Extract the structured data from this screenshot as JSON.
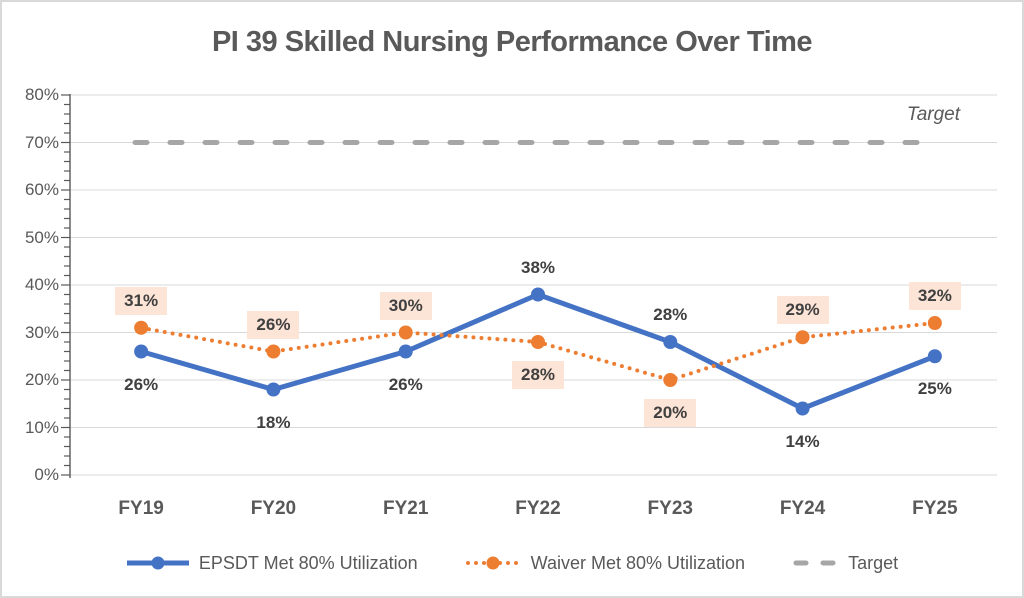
{
  "title": "PI 39 Skilled Nursing Performance Over Time",
  "chart_data": {
    "type": "line",
    "title": "PI 39 Skilled Nursing Performance Over Time",
    "categories": [
      "FY19",
      "FY20",
      "FY21",
      "FY22",
      "FY23",
      "FY24",
      "FY25"
    ],
    "series": [
      {
        "name": "EPSDT Met 80% Utilization",
        "color": "#4472C4",
        "line_style": "solid",
        "values": [
          26,
          18,
          26,
          38,
          28,
          14,
          25
        ],
        "labels": [
          "26%",
          "18%",
          "26%",
          "38%",
          "28%",
          "14%",
          "25%"
        ],
        "label_positions": [
          "below",
          "below",
          "below",
          "above",
          "above",
          "below",
          "below"
        ],
        "label_background": false
      },
      {
        "name": "Waiver Met 80% Utilization",
        "color": "#ED7D31",
        "line_style": "dotted",
        "values": [
          31,
          26,
          30,
          28,
          20,
          29,
          32
        ],
        "labels": [
          "31%",
          "26%",
          "30%",
          "28%",
          "20%",
          "29%",
          "32%"
        ],
        "label_positions": [
          "above",
          "above",
          "above",
          "below",
          "below",
          "above",
          "above"
        ],
        "label_background": true,
        "label_bg_color": "#FCE4D6"
      }
    ],
    "target": {
      "label": "Target",
      "value": 70,
      "color": "#A6A6A6",
      "line_style": "dashed"
    },
    "y_axis": {
      "min": 0,
      "max": 80,
      "major_step": 10,
      "minor_step": 2,
      "tick_labels": [
        "0%",
        "10%",
        "20%",
        "30%",
        "40%",
        "50%",
        "60%",
        "70%",
        "80%"
      ]
    },
    "grid": true,
    "legend_position": "bottom",
    "colors": {
      "axis_text": "#595959",
      "data_label_text": "#404040",
      "gridline": "#D9D9D9",
      "axis_line": "#595959",
      "label_bg": "#FCE4D6"
    }
  }
}
